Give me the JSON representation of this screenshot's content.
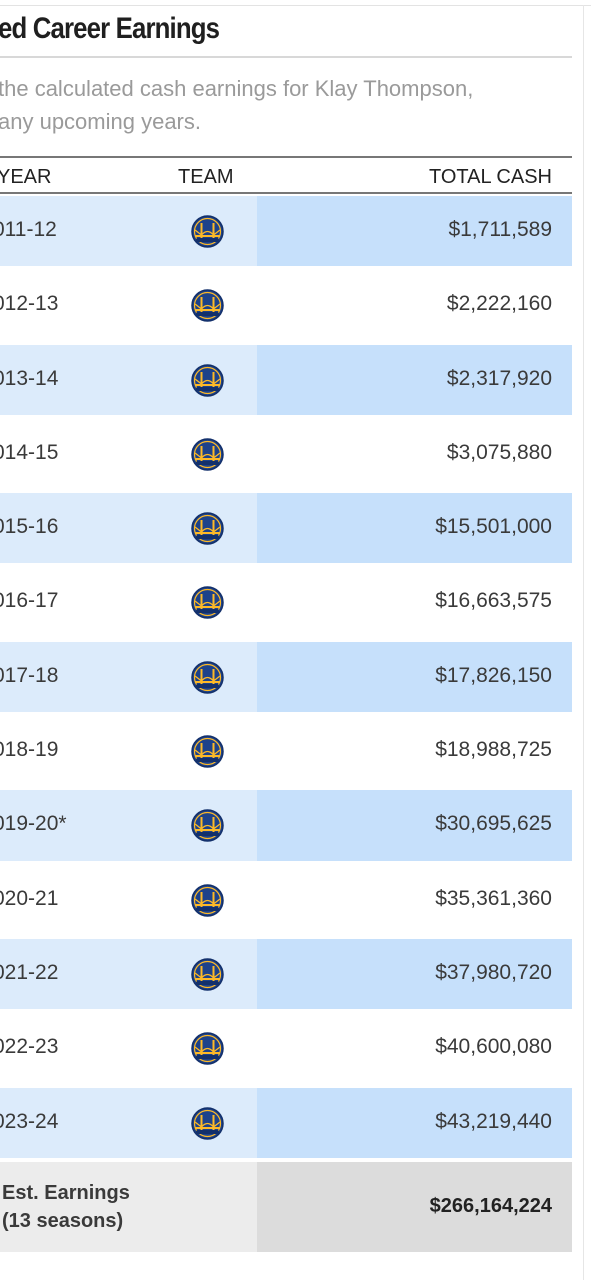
{
  "header": {
    "title": "ed Career Earnings",
    "description_line1": "the calculated cash earnings for Klay Thompson,",
    "description_line2": "any upcoming years."
  },
  "table": {
    "columns": {
      "year": "YEAR",
      "team": "TEAM",
      "cash": "TOTAL CASH"
    },
    "rows": [
      {
        "year": "011-12",
        "team_icon": "golden-state-warriors-logo",
        "cash": "$1,711,589"
      },
      {
        "year": "012-13",
        "team_icon": "golden-state-warriors-logo",
        "cash": "$2,222,160"
      },
      {
        "year": "013-14",
        "team_icon": "golden-state-warriors-logo",
        "cash": "$2,317,920"
      },
      {
        "year": "014-15",
        "team_icon": "golden-state-warriors-logo",
        "cash": "$3,075,880"
      },
      {
        "year": "015-16",
        "team_icon": "golden-state-warriors-logo",
        "cash": "$15,501,000"
      },
      {
        "year": "016-17",
        "team_icon": "golden-state-warriors-logo",
        "cash": "$16,663,575"
      },
      {
        "year": "017-18",
        "team_icon": "golden-state-warriors-logo",
        "cash": "$17,826,150"
      },
      {
        "year": "018-19",
        "team_icon": "golden-state-warriors-logo",
        "cash": "$18,988,725"
      },
      {
        "year": "019-20*",
        "team_icon": "golden-state-warriors-logo",
        "cash": "$30,695,625"
      },
      {
        "year": "020-21",
        "team_icon": "golden-state-warriors-logo",
        "cash": "$35,361,360"
      },
      {
        "year": "021-22",
        "team_icon": "golden-state-warriors-logo",
        "cash": "$37,980,720"
      },
      {
        "year": "022-23",
        "team_icon": "golden-state-warriors-logo",
        "cash": "$40,600,080"
      },
      {
        "year": "023-24",
        "team_icon": "golden-state-warriors-logo",
        "cash": "$43,219,440"
      }
    ],
    "total": {
      "label_line1": "Est. Earnings",
      "label_line2": "(13 seasons)",
      "amount": "$266,164,224"
    }
  },
  "colors": {
    "row_alt_left": "#dcebfb",
    "row_alt_right": "#c6e0fb",
    "total_left": "#ececec",
    "total_right": "#dcdcdc",
    "logo_blue": "#1d428a",
    "logo_gold": "#fdb927"
  }
}
